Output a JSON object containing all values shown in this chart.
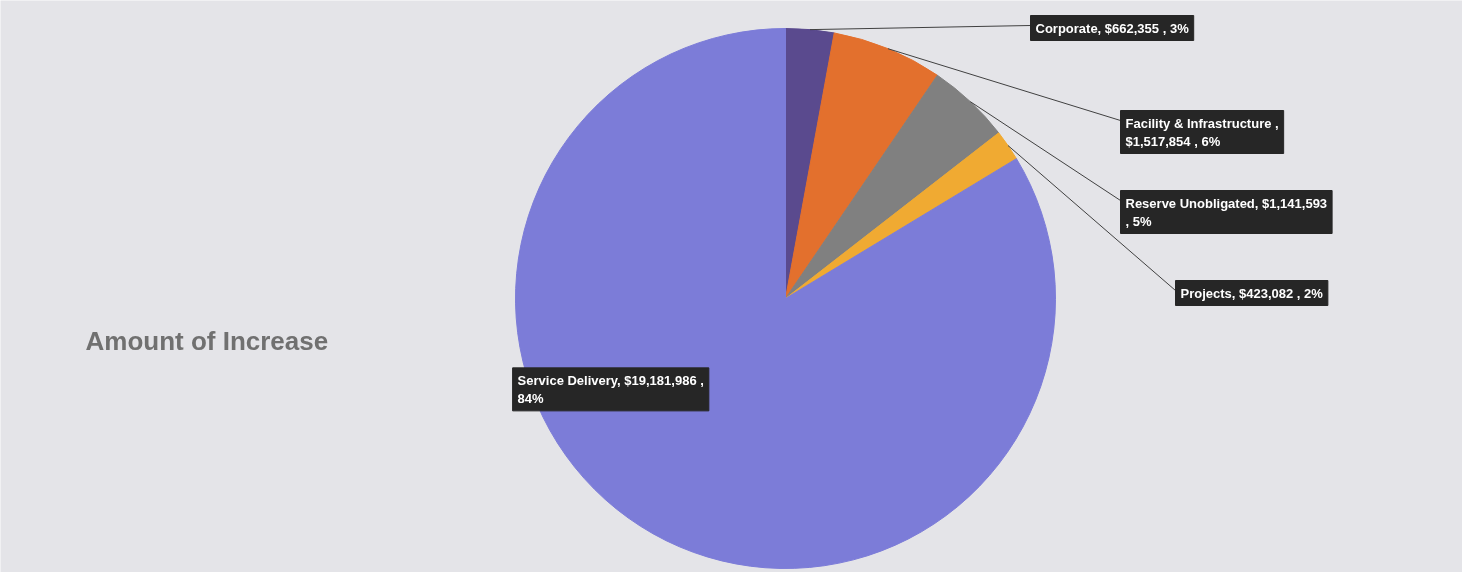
{
  "chart_data": {
    "type": "pie",
    "title": "Amount of Increase",
    "categories": [
      "Corporate",
      "Facility & Infrastructure",
      "Reserve Unobligated",
      "Projects",
      "Service Delivery"
    ],
    "values": [
      662355,
      1517854,
      1141593,
      423082,
      19181986
    ],
    "colors": [
      "#5a4a8e",
      "#e3702d",
      "#808080",
      "#f0aa32",
      "#7c7cd8"
    ],
    "value_labels": [
      ", $662,355 , 3%",
      " ,\n$1,517,854 , 6%",
      ", $1,141,593\n, 5%",
      ", $423,082 , 2%",
      ", $19,181,986 ,\n84%"
    ]
  }
}
